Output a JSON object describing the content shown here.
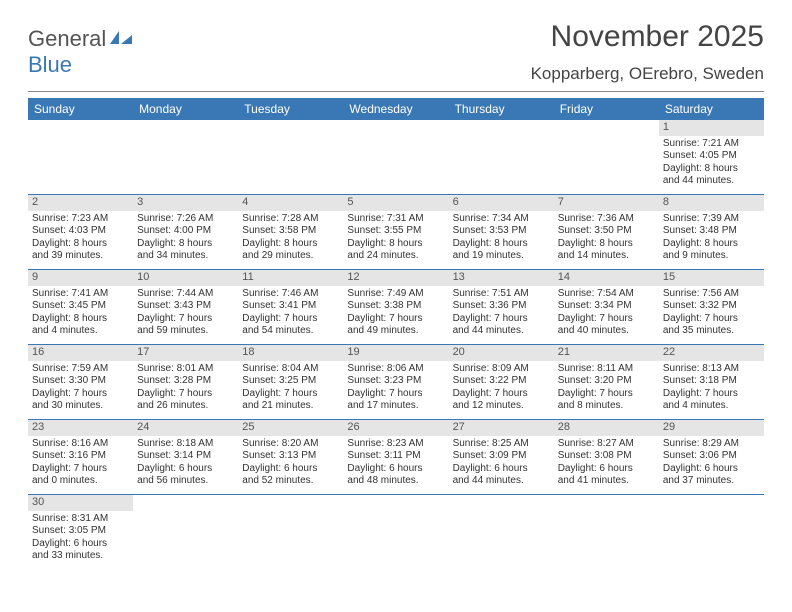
{
  "brand": {
    "part1": "General",
    "part2": "Blue"
  },
  "title": "November 2025",
  "location": "Kopparberg, OErebro, Sweden",
  "dayHeaders": [
    "Sunday",
    "Monday",
    "Tuesday",
    "Wednesday",
    "Thursday",
    "Friday",
    "Saturday"
  ],
  "colors": {
    "headerBar": "#3a78b5",
    "headerText": "#ffffff",
    "dayNumBg": "#e5e5e5",
    "rowBorder": "#3a78b5",
    "bodyText": "#333333"
  },
  "weeks": [
    [
      {
        "n": "",
        "sr": "",
        "ss": "",
        "dl1": "",
        "dl2": ""
      },
      {
        "n": "",
        "sr": "",
        "ss": "",
        "dl1": "",
        "dl2": ""
      },
      {
        "n": "",
        "sr": "",
        "ss": "",
        "dl1": "",
        "dl2": ""
      },
      {
        "n": "",
        "sr": "",
        "ss": "",
        "dl1": "",
        "dl2": ""
      },
      {
        "n": "",
        "sr": "",
        "ss": "",
        "dl1": "",
        "dl2": ""
      },
      {
        "n": "",
        "sr": "",
        "ss": "",
        "dl1": "",
        "dl2": ""
      },
      {
        "n": "1",
        "sr": "Sunrise: 7:21 AM",
        "ss": "Sunset: 4:05 PM",
        "dl1": "Daylight: 8 hours",
        "dl2": "and 44 minutes."
      }
    ],
    [
      {
        "n": "2",
        "sr": "Sunrise: 7:23 AM",
        "ss": "Sunset: 4:03 PM",
        "dl1": "Daylight: 8 hours",
        "dl2": "and 39 minutes."
      },
      {
        "n": "3",
        "sr": "Sunrise: 7:26 AM",
        "ss": "Sunset: 4:00 PM",
        "dl1": "Daylight: 8 hours",
        "dl2": "and 34 minutes."
      },
      {
        "n": "4",
        "sr": "Sunrise: 7:28 AM",
        "ss": "Sunset: 3:58 PM",
        "dl1": "Daylight: 8 hours",
        "dl2": "and 29 minutes."
      },
      {
        "n": "5",
        "sr": "Sunrise: 7:31 AM",
        "ss": "Sunset: 3:55 PM",
        "dl1": "Daylight: 8 hours",
        "dl2": "and 24 minutes."
      },
      {
        "n": "6",
        "sr": "Sunrise: 7:34 AM",
        "ss": "Sunset: 3:53 PM",
        "dl1": "Daylight: 8 hours",
        "dl2": "and 19 minutes."
      },
      {
        "n": "7",
        "sr": "Sunrise: 7:36 AM",
        "ss": "Sunset: 3:50 PM",
        "dl1": "Daylight: 8 hours",
        "dl2": "and 14 minutes."
      },
      {
        "n": "8",
        "sr": "Sunrise: 7:39 AM",
        "ss": "Sunset: 3:48 PM",
        "dl1": "Daylight: 8 hours",
        "dl2": "and 9 minutes."
      }
    ],
    [
      {
        "n": "9",
        "sr": "Sunrise: 7:41 AM",
        "ss": "Sunset: 3:45 PM",
        "dl1": "Daylight: 8 hours",
        "dl2": "and 4 minutes."
      },
      {
        "n": "10",
        "sr": "Sunrise: 7:44 AM",
        "ss": "Sunset: 3:43 PM",
        "dl1": "Daylight: 7 hours",
        "dl2": "and 59 minutes."
      },
      {
        "n": "11",
        "sr": "Sunrise: 7:46 AM",
        "ss": "Sunset: 3:41 PM",
        "dl1": "Daylight: 7 hours",
        "dl2": "and 54 minutes."
      },
      {
        "n": "12",
        "sr": "Sunrise: 7:49 AM",
        "ss": "Sunset: 3:38 PM",
        "dl1": "Daylight: 7 hours",
        "dl2": "and 49 minutes."
      },
      {
        "n": "13",
        "sr": "Sunrise: 7:51 AM",
        "ss": "Sunset: 3:36 PM",
        "dl1": "Daylight: 7 hours",
        "dl2": "and 44 minutes."
      },
      {
        "n": "14",
        "sr": "Sunrise: 7:54 AM",
        "ss": "Sunset: 3:34 PM",
        "dl1": "Daylight: 7 hours",
        "dl2": "and 40 minutes."
      },
      {
        "n": "15",
        "sr": "Sunrise: 7:56 AM",
        "ss": "Sunset: 3:32 PM",
        "dl1": "Daylight: 7 hours",
        "dl2": "and 35 minutes."
      }
    ],
    [
      {
        "n": "16",
        "sr": "Sunrise: 7:59 AM",
        "ss": "Sunset: 3:30 PM",
        "dl1": "Daylight: 7 hours",
        "dl2": "and 30 minutes."
      },
      {
        "n": "17",
        "sr": "Sunrise: 8:01 AM",
        "ss": "Sunset: 3:28 PM",
        "dl1": "Daylight: 7 hours",
        "dl2": "and 26 minutes."
      },
      {
        "n": "18",
        "sr": "Sunrise: 8:04 AM",
        "ss": "Sunset: 3:25 PM",
        "dl1": "Daylight: 7 hours",
        "dl2": "and 21 minutes."
      },
      {
        "n": "19",
        "sr": "Sunrise: 8:06 AM",
        "ss": "Sunset: 3:23 PM",
        "dl1": "Daylight: 7 hours",
        "dl2": "and 17 minutes."
      },
      {
        "n": "20",
        "sr": "Sunrise: 8:09 AM",
        "ss": "Sunset: 3:22 PM",
        "dl1": "Daylight: 7 hours",
        "dl2": "and 12 minutes."
      },
      {
        "n": "21",
        "sr": "Sunrise: 8:11 AM",
        "ss": "Sunset: 3:20 PM",
        "dl1": "Daylight: 7 hours",
        "dl2": "and 8 minutes."
      },
      {
        "n": "22",
        "sr": "Sunrise: 8:13 AM",
        "ss": "Sunset: 3:18 PM",
        "dl1": "Daylight: 7 hours",
        "dl2": "and 4 minutes."
      }
    ],
    [
      {
        "n": "23",
        "sr": "Sunrise: 8:16 AM",
        "ss": "Sunset: 3:16 PM",
        "dl1": "Daylight: 7 hours",
        "dl2": "and 0 minutes."
      },
      {
        "n": "24",
        "sr": "Sunrise: 8:18 AM",
        "ss": "Sunset: 3:14 PM",
        "dl1": "Daylight: 6 hours",
        "dl2": "and 56 minutes."
      },
      {
        "n": "25",
        "sr": "Sunrise: 8:20 AM",
        "ss": "Sunset: 3:13 PM",
        "dl1": "Daylight: 6 hours",
        "dl2": "and 52 minutes."
      },
      {
        "n": "26",
        "sr": "Sunrise: 8:23 AM",
        "ss": "Sunset: 3:11 PM",
        "dl1": "Daylight: 6 hours",
        "dl2": "and 48 minutes."
      },
      {
        "n": "27",
        "sr": "Sunrise: 8:25 AM",
        "ss": "Sunset: 3:09 PM",
        "dl1": "Daylight: 6 hours",
        "dl2": "and 44 minutes."
      },
      {
        "n": "28",
        "sr": "Sunrise: 8:27 AM",
        "ss": "Sunset: 3:08 PM",
        "dl1": "Daylight: 6 hours",
        "dl2": "and 41 minutes."
      },
      {
        "n": "29",
        "sr": "Sunrise: 8:29 AM",
        "ss": "Sunset: 3:06 PM",
        "dl1": "Daylight: 6 hours",
        "dl2": "and 37 minutes."
      }
    ],
    [
      {
        "n": "30",
        "sr": "Sunrise: 8:31 AM",
        "ss": "Sunset: 3:05 PM",
        "dl1": "Daylight: 6 hours",
        "dl2": "and 33 minutes."
      },
      {
        "n": "",
        "sr": "",
        "ss": "",
        "dl1": "",
        "dl2": ""
      },
      {
        "n": "",
        "sr": "",
        "ss": "",
        "dl1": "",
        "dl2": ""
      },
      {
        "n": "",
        "sr": "",
        "ss": "",
        "dl1": "",
        "dl2": ""
      },
      {
        "n": "",
        "sr": "",
        "ss": "",
        "dl1": "",
        "dl2": ""
      },
      {
        "n": "",
        "sr": "",
        "ss": "",
        "dl1": "",
        "dl2": ""
      },
      {
        "n": "",
        "sr": "",
        "ss": "",
        "dl1": "",
        "dl2": ""
      }
    ]
  ]
}
